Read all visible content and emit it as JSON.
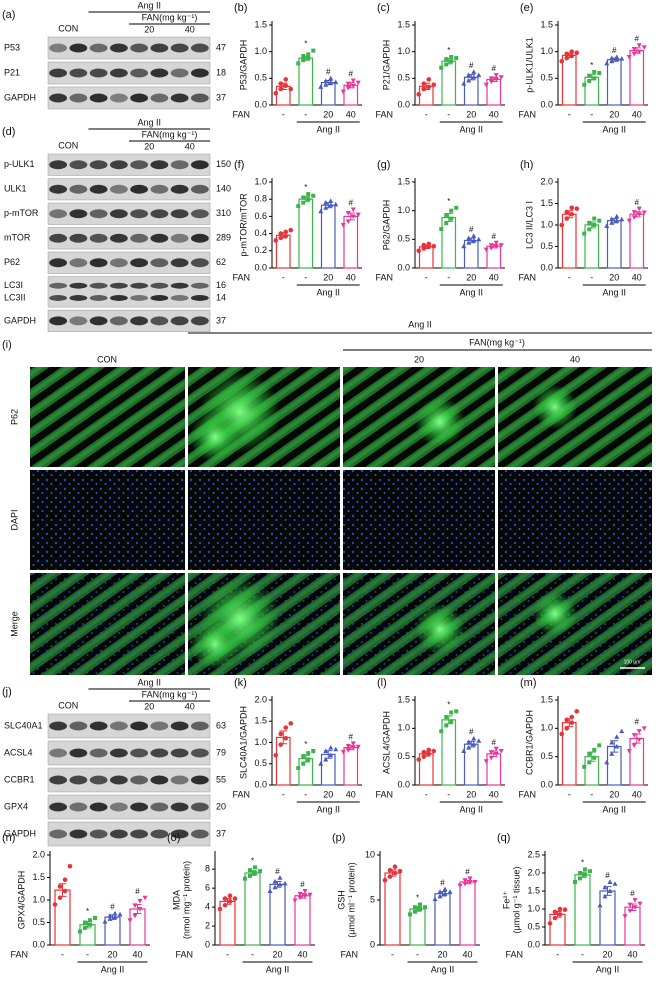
{
  "blots": [
    {
      "panel": "(a)",
      "con": "CON",
      "group": "Ang II",
      "sub": "FAN(mg kg⁻¹)",
      "doses": [
        "20",
        "40"
      ],
      "rows": [
        {
          "label": "P53",
          "kda": 47
        },
        {
          "label": "P21",
          "kda": 18
        },
        {
          "label": "GAPDH",
          "kda": 37
        }
      ]
    },
    {
      "panel": "(d)",
      "con": "CON",
      "group": "Ang II",
      "sub": "FAN(mg kg⁻¹)",
      "doses": [
        "20",
        "40"
      ],
      "rows": [
        {
          "label": "p-ULK1",
          "kda": 150
        },
        {
          "label": "ULK1",
          "kda": 140
        },
        {
          "label": "p-mTOR",
          "kda": 310
        },
        {
          "label": "mTOR",
          "kda": 289
        },
        {
          "label": "P62",
          "kda": 62
        },
        {
          "label": "LC3I",
          "kda": 16
        },
        {
          "label": "LC3II",
          "kda": 14
        },
        {
          "label": "GAPDH",
          "kda": 37
        }
      ]
    },
    {
      "panel": "(j)",
      "con": "CON",
      "group": "Ang II",
      "sub": "FAN(mg kg⁻¹)",
      "doses": [
        "20",
        "40"
      ],
      "rows": [
        {
          "label": "SLC40A1",
          "kda": 63
        },
        {
          "label": "ACSL4",
          "kda": 79
        },
        {
          "label": "CCBR1",
          "kda": 55
        },
        {
          "label": "GPX4",
          "kda": 20
        },
        {
          "label": "GAPDH",
          "kda": 37
        }
      ]
    }
  ],
  "microscopy": {
    "panel": "(i)",
    "con": "CON",
    "group": "Ang II",
    "sub": "FAN(mg kg⁻¹)",
    "doses": [
      "20",
      "40"
    ],
    "rows": [
      "P62",
      "DAPI",
      "Merge"
    ],
    "scale_bar": "100 μm"
  },
  "chart_data": [
    {
      "type": "bar",
      "panel": "(b)",
      "ylabel": [
        "P53/GAPDH"
      ],
      "categories": [
        "-",
        "-",
        "20",
        "40"
      ],
      "row_label": "FAN",
      "group_label": "Ang II",
      "colors": [
        "#e8333a",
        "#3cb44b",
        "#4a5bbf",
        "#e8359a"
      ],
      "values": [
        0.35,
        0.88,
        0.42,
        0.37
      ],
      "errors": [
        0.06,
        0.04,
        0.04,
        0.05
      ],
      "points": [
        [
          0.22,
          0.3,
          0.36,
          0.4,
          0.48,
          0.3
        ],
        [
          0.78,
          0.84,
          0.88,
          0.92,
          0.95,
          1.02
        ],
        [
          0.34,
          0.38,
          0.42,
          0.45,
          0.5,
          0.43
        ],
        [
          0.25,
          0.32,
          0.36,
          0.4,
          0.46,
          0.42
        ]
      ],
      "annotations": [
        null,
        "*",
        "#",
        "#"
      ],
      "ylim": [
        0,
        1.5
      ],
      "yticks": [
        {
          "value": 0,
          "label": "0.0"
        },
        0.5,
        {
          "value": 1,
          "label": "1.0"
        },
        1.5
      ]
    },
    {
      "type": "bar",
      "panel": "(c)",
      "ylabel": [
        "P21/GAPDH"
      ],
      "categories": [
        "-",
        "-",
        "20",
        "40"
      ],
      "row_label": "FAN",
      "group_label": "Ang II",
      "colors": [
        "#e8333a",
        "#3cb44b",
        "#4a5bbf",
        "#e8359a"
      ],
      "values": [
        0.35,
        0.82,
        0.52,
        0.48
      ],
      "errors": [
        0.06,
        0.05,
        0.05,
        0.04
      ],
      "points": [
        [
          0.2,
          0.3,
          0.34,
          0.4,
          0.48,
          0.38
        ],
        [
          0.7,
          0.76,
          0.82,
          0.86,
          0.9,
          0.88
        ],
        [
          0.4,
          0.46,
          0.52,
          0.56,
          0.62,
          0.56
        ],
        [
          0.38,
          0.44,
          0.48,
          0.5,
          0.56,
          0.52
        ]
      ],
      "annotations": [
        null,
        "*",
        "#",
        "#"
      ],
      "ylim": [
        0,
        1.5
      ],
      "yticks": [
        {
          "value": 0,
          "label": "0.0"
        },
        0.5,
        {
          "value": 1,
          "label": "1.0"
        },
        1.5
      ]
    },
    {
      "type": "bar",
      "panel": "(e)",
      "ylabel": [
        "p-ULK1/ULK1"
      ],
      "categories": [
        "-",
        "-",
        "20",
        "40"
      ],
      "row_label": "FAN",
      "group_label": "Ang II",
      "colors": [
        "#e8333a",
        "#3cb44b",
        "#4a5bbf",
        "#e8359a"
      ],
      "values": [
        0.93,
        0.52,
        0.85,
        1.02
      ],
      "errors": [
        0.04,
        0.05,
        0.03,
        0.05
      ],
      "points": [
        [
          0.82,
          0.88,
          0.92,
          0.96,
          1.0,
          0.98
        ],
        [
          0.38,
          0.45,
          0.5,
          0.55,
          0.62,
          0.6
        ],
        [
          0.78,
          0.82,
          0.85,
          0.88,
          0.9,
          0.87
        ],
        [
          0.9,
          0.96,
          1.0,
          1.05,
          1.12,
          1.08
        ]
      ],
      "annotations": [
        null,
        "*",
        "#",
        "#"
      ],
      "ylim": [
        0,
        1.5
      ],
      "yticks": [
        {
          "value": 0,
          "label": "0.0"
        },
        0.5,
        {
          "value": 1,
          "label": "1.0"
        },
        1.5
      ]
    },
    {
      "type": "bar",
      "panel": "(f)",
      "ylabel": [
        "p-mTOR/mTOR"
      ],
      "categories": [
        "-",
        "-",
        "20",
        "40"
      ],
      "row_label": "FAN",
      "group_label": "Ang II",
      "colors": [
        "#e8333a",
        "#3cb44b",
        "#4a5bbf",
        "#e8359a"
      ],
      "values": [
        0.38,
        0.8,
        0.73,
        0.6
      ],
      "errors": [
        0.03,
        0.03,
        0.03,
        0.04
      ],
      "points": [
        [
          0.32,
          0.35,
          0.37,
          0.4,
          0.42,
          0.44
        ],
        [
          0.72,
          0.76,
          0.8,
          0.82,
          0.86,
          0.84
        ],
        [
          0.66,
          0.7,
          0.73,
          0.76,
          0.78,
          0.74
        ],
        [
          0.5,
          0.54,
          0.6,
          0.64,
          0.68,
          0.62
        ]
      ],
      "annotations": [
        null,
        "*",
        null,
        "#"
      ],
      "ylim": [
        0,
        1
      ],
      "yticks": [
        {
          "value": 0,
          "label": "0.0"
        },
        0.2,
        0.4,
        0.6,
        0.8,
        {
          "value": 1,
          "label": "1.0"
        }
      ]
    },
    {
      "type": "bar",
      "panel": "(g)",
      "ylabel": [
        "P62/GAPDH"
      ],
      "categories": [
        "-",
        "-",
        "20",
        "40"
      ],
      "row_label": "FAN",
      "group_label": "Ang II",
      "colors": [
        "#e8333a",
        "#3cb44b",
        "#4a5bbf",
        "#e8359a"
      ],
      "values": [
        0.37,
        0.88,
        0.48,
        0.38
      ],
      "errors": [
        0.03,
        0.07,
        0.04,
        0.03
      ],
      "points": [
        [
          0.3,
          0.34,
          0.37,
          0.4,
          0.42,
          0.38
        ],
        [
          0.68,
          0.78,
          0.86,
          0.92,
          1.0,
          1.05
        ],
        [
          0.38,
          0.44,
          0.48,
          0.52,
          0.56,
          0.5
        ],
        [
          0.32,
          0.35,
          0.38,
          0.4,
          0.44,
          0.4
        ]
      ],
      "annotations": [
        null,
        "*",
        "#",
        "#"
      ],
      "ylim": [
        0,
        1.5
      ],
      "yticks": [
        {
          "value": 0,
          "label": "0.0"
        },
        0.5,
        {
          "value": 1,
          "label": "1.0"
        },
        1.5
      ]
    },
    {
      "type": "bar",
      "panel": "(h)",
      "ylabel": [
        "LC3 II/LC3 I"
      ],
      "categories": [
        "-",
        "-",
        "20",
        "40"
      ],
      "row_label": "FAN",
      "group_label": "Ang II",
      "colors": [
        "#e8333a",
        "#3cb44b",
        "#4a5bbf",
        "#e8359a"
      ],
      "values": [
        1.25,
        1.0,
        1.1,
        1.25
      ],
      "errors": [
        0.08,
        0.07,
        0.05,
        0.06
      ],
      "points": [
        [
          1.0,
          1.15,
          1.25,
          1.3,
          1.4,
          1.38
        ],
        [
          0.8,
          0.9,
          1.0,
          1.05,
          1.15,
          1.1
        ],
        [
          0.98,
          1.05,
          1.1,
          1.14,
          1.2,
          1.13
        ],
        [
          1.1,
          1.18,
          1.25,
          1.3,
          1.38,
          1.29
        ]
      ],
      "annotations": [
        null,
        null,
        null,
        "#"
      ],
      "ylim": [
        0,
        2
      ],
      "yticks": [
        {
          "value": 0,
          "label": "0.0"
        },
        0.5,
        {
          "value": 1,
          "label": "1.0"
        },
        1.5,
        {
          "value": 2,
          "label": "2.0"
        }
      ]
    },
    {
      "type": "bar",
      "panel": "(k)",
      "ylabel": [
        "SLC40A1/GAPDH"
      ],
      "categories": [
        "-",
        "-",
        "20",
        "40"
      ],
      "row_label": "FAN",
      "group_label": "Ang II",
      "colors": [
        "#e8333a",
        "#3cb44b",
        "#4a5bbf",
        "#e8359a"
      ],
      "values": [
        1.12,
        0.62,
        0.72,
        0.88
      ],
      "errors": [
        0.15,
        0.08,
        0.09,
        0.05
      ],
      "points": [
        [
          0.7,
          0.95,
          1.1,
          1.2,
          1.35,
          1.45
        ],
        [
          0.4,
          0.5,
          0.6,
          0.68,
          0.75,
          0.8
        ],
        [
          0.5,
          0.6,
          0.7,
          0.8,
          0.88,
          0.84
        ],
        [
          0.78,
          0.82,
          0.88,
          0.92,
          0.98,
          0.9
        ]
      ],
      "annotations": [
        null,
        "*",
        null,
        "#"
      ],
      "ylim": [
        0,
        2
      ],
      "yticks": [
        {
          "value": 0,
          "label": "0.0"
        },
        0.5,
        {
          "value": 1,
          "label": "1.0"
        },
        1.5,
        {
          "value": 2,
          "label": "2.0"
        }
      ]
    },
    {
      "type": "bar",
      "panel": "(l)",
      "ylabel": [
        "ACSL4/GAPDH"
      ],
      "categories": [
        "-",
        "-",
        "20",
        "40"
      ],
      "row_label": "FAN",
      "group_label": "Ang II",
      "colors": [
        "#e8333a",
        "#3cb44b",
        "#4a5bbf",
        "#e8359a"
      ],
      "values": [
        0.55,
        1.15,
        0.72,
        0.55
      ],
      "errors": [
        0.04,
        0.07,
        0.05,
        0.05
      ],
      "points": [
        [
          0.45,
          0.5,
          0.55,
          0.58,
          0.62,
          0.6
        ],
        [
          0.95,
          1.05,
          1.12,
          1.2,
          1.28,
          1.3
        ],
        [
          0.6,
          0.66,
          0.72,
          0.76,
          0.82,
          0.78
        ],
        [
          0.42,
          0.48,
          0.55,
          0.58,
          0.64,
          0.6
        ]
      ],
      "annotations": [
        null,
        "*",
        "#",
        "#"
      ],
      "ylim": [
        0,
        1.5
      ],
      "yticks": [
        {
          "value": 0,
          "label": "0.0"
        },
        0.5,
        {
          "value": 1,
          "label": "1.0"
        },
        1.5
      ]
    },
    {
      "type": "bar",
      "panel": "(m)",
      "ylabel": [
        "CCBR1/GAPDH"
      ],
      "categories": [
        "-",
        "-",
        "20",
        "40"
      ],
      "row_label": "FAN",
      "group_label": "Ang II",
      "colors": [
        "#e8333a",
        "#3cb44b",
        "#4a5bbf",
        "#e8359a"
      ],
      "values": [
        1.1,
        0.5,
        0.68,
        0.82
      ],
      "errors": [
        0.07,
        0.08,
        0.1,
        0.08
      ],
      "points": [
        [
          0.9,
          1.0,
          1.1,
          1.15,
          1.2,
          1.3
        ],
        [
          0.32,
          0.4,
          0.48,
          0.55,
          0.62,
          0.7
        ],
        [
          0.4,
          0.55,
          0.68,
          0.75,
          0.85,
          0.95
        ],
        [
          0.6,
          0.7,
          0.8,
          0.88,
          0.95,
          1.0
        ]
      ],
      "annotations": [
        null,
        null,
        null,
        "#"
      ],
      "ylim": [
        0,
        1.5
      ],
      "yticks": [
        {
          "value": 0,
          "label": "0.0"
        },
        0.5,
        {
          "value": 1,
          "label": "1.0"
        },
        1.5
      ]
    },
    {
      "type": "bar",
      "panel": "(n)",
      "ylabel": [
        "GPX4/GAPDH"
      ],
      "categories": [
        "-",
        "-",
        "20",
        "40"
      ],
      "row_label": "FAN",
      "group_label": "Ang II",
      "colors": [
        "#e8333a",
        "#3cb44b",
        "#4a5bbf",
        "#e8359a"
      ],
      "values": [
        1.22,
        0.45,
        0.62,
        0.8
      ],
      "errors": [
        0.14,
        0.07,
        0.05,
        0.1
      ],
      "points": [
        [
          0.9,
          1.05,
          1.2,
          1.3,
          1.45,
          1.75
        ],
        [
          0.3,
          0.38,
          0.45,
          0.5,
          0.55,
          0.6
        ],
        [
          0.52,
          0.58,
          0.62,
          0.65,
          0.7,
          0.68
        ],
        [
          0.55,
          0.65,
          0.8,
          0.88,
          0.98,
          1.05
        ]
      ],
      "annotations": [
        null,
        "*",
        "#",
        "#"
      ],
      "ylim": [
        0,
        2
      ],
      "yticks": [
        {
          "value": 0,
          "label": "0.0"
        },
        0.5,
        {
          "value": 1,
          "label": "1.0"
        },
        1.5,
        {
          "value": 2,
          "label": "2.0"
        }
      ]
    },
    {
      "type": "bar",
      "panel": "(o)",
      "ylabel": [
        "MDA",
        "(nmol mg⁻¹ protein)"
      ],
      "categories": [
        "-",
        "-",
        "20",
        "40"
      ],
      "row_label": "FAN",
      "group_label": "Ang II",
      "colors": [
        "#e8333a",
        "#3cb44b",
        "#4a5bbf",
        "#e8359a"
      ],
      "values": [
        4.6,
        7.6,
        6.4,
        5.2
      ],
      "errors": [
        0.3,
        0.25,
        0.3,
        0.25
      ],
      "points": [
        [
          3.8,
          4.2,
          4.6,
          4.9,
          5.2,
          4.9
        ],
        [
          7.0,
          7.3,
          7.6,
          7.9,
          8.2,
          7.8
        ],
        [
          5.7,
          6.1,
          6.4,
          6.7,
          7.1,
          6.5
        ],
        [
          4.7,
          5.0,
          5.2,
          5.4,
          5.7,
          5.3
        ]
      ],
      "annotations": [
        null,
        "*",
        "#",
        "#"
      ],
      "ylim": [
        0,
        9.5
      ],
      "yticks": [
        0,
        2,
        4,
        6,
        8
      ]
    },
    {
      "type": "bar",
      "panel": "(p)",
      "ylabel": [
        "GSH",
        "(μmol ml⁻¹ protein)"
      ],
      "categories": [
        "-",
        "-",
        "20",
        "40"
      ],
      "row_label": "FAN",
      "group_label": "Ang II",
      "colors": [
        "#e8333a",
        "#3cb44b",
        "#4a5bbf",
        "#e8359a"
      ],
      "values": [
        8.0,
        4.0,
        5.7,
        7.0
      ],
      "errors": [
        0.35,
        0.25,
        0.25,
        0.2
      ],
      "points": [
        [
          7.2,
          7.6,
          8.0,
          8.3,
          8.7,
          8.2
        ],
        [
          3.4,
          3.7,
          4.0,
          4.2,
          4.5,
          4.2
        ],
        [
          5.1,
          5.4,
          5.7,
          5.9,
          6.2,
          5.9
        ],
        [
          6.6,
          6.8,
          7.0,
          7.2,
          7.4,
          7.0
        ]
      ],
      "annotations": [
        null,
        "*",
        "#",
        "#"
      ],
      "ylim": [
        0,
        10
      ],
      "yticks": [
        0,
        5,
        10
      ]
    },
    {
      "type": "bar",
      "panel": "(q)",
      "ylabel": [
        "Fe²⁺",
        "(μmol g⁻¹ tissue)"
      ],
      "categories": [
        "-",
        "-",
        "20",
        "40"
      ],
      "row_label": "FAN",
      "group_label": "Ang II",
      "colors": [
        "#e8333a",
        "#3cb44b",
        "#4a5bbf",
        "#e8359a"
      ],
      "values": [
        0.85,
        1.95,
        1.5,
        1.05
      ],
      "errors": [
        0.08,
        0.07,
        0.12,
        0.09
      ],
      "points": [
        [
          0.6,
          0.75,
          0.85,
          0.92,
          1.0,
          0.98
        ],
        [
          1.75,
          1.85,
          1.95,
          2.0,
          2.1,
          2.05
        ],
        [
          1.1,
          1.35,
          1.5,
          1.6,
          1.75,
          1.7
        ],
        [
          0.8,
          0.95,
          1.05,
          1.12,
          1.25,
          1.15
        ]
      ],
      "annotations": [
        null,
        "*",
        "#",
        "#"
      ],
      "ylim": [
        0,
        2.5
      ],
      "yticks": [
        {
          "value": 0,
          "label": "0.0"
        },
        0.5,
        {
          "value": 1,
          "label": "1.0"
        },
        1.5,
        {
          "value": 2,
          "label": "2.0"
        },
        2.5
      ]
    }
  ]
}
